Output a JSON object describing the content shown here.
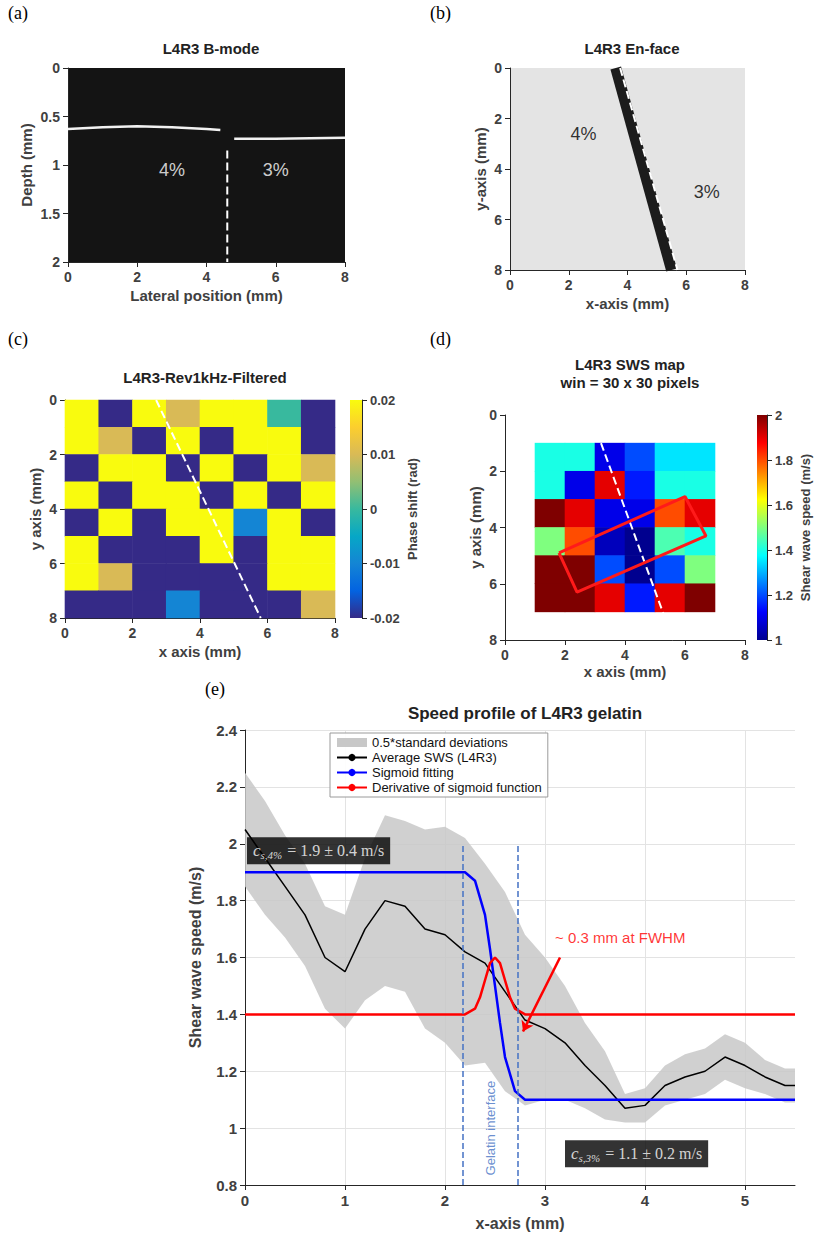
{
  "chart_data": [
    {
      "panel": "(a)",
      "type": "image",
      "title": "L4R3 B-mode",
      "x_label": "Lateral position (mm)",
      "y_label": "Depth (mm)",
      "xlim": [
        0,
        8
      ],
      "xticks": [
        0,
        2,
        4,
        6,
        8
      ],
      "ylim": [
        0,
        2
      ],
      "yticks": [
        0,
        0.5,
        1,
        1.5,
        2
      ],
      "grid": false,
      "surface": {
        "x": [
          0,
          1,
          2,
          3,
          4,
          4.4,
          4.6,
          4.8,
          6,
          8
        ],
        "y": [
          0.63,
          0.61,
          0.6,
          0.61,
          0.63,
          0.64,
          null,
          0.73,
          0.73,
          0.72
        ]
      },
      "interface": [
        [
          4.6,
          0.85
        ],
        [
          4.6,
          2
        ]
      ],
      "annotations": [
        {
          "text": "4%",
          "x": 3,
          "y": 1.05
        },
        {
          "text": "3%",
          "x": 6,
          "y": 1.05
        }
      ]
    },
    {
      "panel": "(b)",
      "type": "image",
      "title": "L4R3 En-face",
      "x_label": "x-axis (mm)",
      "y_label": "y-axis (mm)",
      "xlim": [
        0,
        8
      ],
      "xticks": [
        0,
        2,
        4,
        6,
        8
      ],
      "ylim": [
        0,
        8
      ],
      "yticks": [
        0,
        2,
        4,
        6,
        8
      ],
      "grid": false,
      "band": [
        [
          3.6,
          0
        ],
        [
          5.5,
          8
        ]
      ],
      "interface": [
        [
          3.75,
          0
        ],
        [
          5.7,
          8
        ]
      ],
      "annotations": [
        {
          "text": "4%",
          "x": 2.5,
          "y": 2.6
        },
        {
          "text": "3%",
          "x": 6.7,
          "y": 4.9
        }
      ]
    },
    {
      "panel": "(c)",
      "type": "image",
      "title": "L4R3-Rev1kHz-Filtered",
      "x_label": "x axis (mm)",
      "y_label": "y axis (mm)",
      "xlim": [
        0,
        8
      ],
      "xticks": [
        0,
        2,
        4,
        6,
        8
      ],
      "ylim": [
        0,
        8
      ],
      "yticks": [
        0,
        2,
        4,
        6,
        8
      ],
      "grid": false,
      "cells": {
        "x": [
          0.5,
          1.5,
          2.5,
          3.5,
          4.5,
          5.5,
          6.5,
          7.5
        ],
        "y": [
          0.5,
          1.5,
          2.5,
          3.5,
          4.5,
          5.5,
          6.5,
          7.5
        ],
        "values": [
          [
            0.02,
            -0.02,
            0.02,
            0.01,
            0.02,
            0.02,
            0,
            -0.02
          ],
          [
            0.02,
            0.01,
            -0.02,
            0.02,
            -0.02,
            0.02,
            0.02,
            -0.02
          ],
          [
            -0.02,
            0.02,
            0.02,
            -0.02,
            0.02,
            -0.02,
            0.02,
            0.01
          ],
          [
            0.02,
            -0.02,
            0.02,
            0.02,
            -0.02,
            0.02,
            -0.02,
            0.02
          ],
          [
            -0.02,
            0.02,
            -0.02,
            0.02,
            0.02,
            -0.01,
            0.02,
            -0.02
          ],
          [
            0.02,
            -0.02,
            -0.02,
            -0.02,
            0.02,
            -0.02,
            0.02,
            0.02
          ],
          [
            0.02,
            0.01,
            -0.02,
            -0.02,
            -0.02,
            -0.02,
            0.02,
            0.02
          ],
          [
            -0.02,
            -0.02,
            -0.02,
            -0.01,
            -0.02,
            -0.02,
            -0.02,
            0.01
          ]
        ]
      },
      "colorbar": {
        "label": "Phase shift (rad)",
        "range": [
          -0.02,
          0.02
        ],
        "ticks": [
          -0.02,
          -0.01,
          0,
          0.01,
          0.02
        ]
      },
      "interface": [
        [
          2.7,
          0
        ],
        [
          5.8,
          8
        ]
      ]
    },
    {
      "panel": "(d)",
      "type": "image",
      "title": "L4R3 SWS map",
      "subtitle": "win = 30 x 30 pixels",
      "x_label": "x axis (mm)",
      "y_label": "y axis (mm)",
      "xlim": [
        0,
        8
      ],
      "xticks": [
        0,
        2,
        4,
        6,
        8
      ],
      "ylim": [
        0,
        8
      ],
      "yticks": [
        0,
        2,
        4,
        6,
        8
      ],
      "grid": false,
      "cells": {
        "x": [
          1.5,
          2.5,
          3.5,
          4.5,
          5.5,
          6.5
        ],
        "y": [
          1.5,
          2.5,
          3.5,
          4.5,
          5.5,
          6.5
        ],
        "values": [
          [
            1.4,
            1.4,
            1.1,
            1.2,
            1.35,
            1.35
          ],
          [
            1.4,
            1.1,
            1.9,
            1.15,
            1.4,
            1.4
          ],
          [
            2,
            1.9,
            1.1,
            1.1,
            1.8,
            1.9
          ],
          [
            1.5,
            1.8,
            1.05,
            1,
            1.45,
            1.4
          ],
          [
            2,
            2,
            1.2,
            1,
            1.2,
            1.5
          ],
          [
            2,
            2,
            1.9,
            1.15,
            1.9,
            2
          ]
        ]
      },
      "colorbar": {
        "label": "Shear wave speed (m/s)",
        "range": [
          1,
          2
        ],
        "ticks": [
          1,
          1.2,
          1.4,
          1.6,
          1.8,
          2
        ]
      },
      "interface": [
        [
          3.2,
          1
        ],
        [
          5.6,
          8
        ]
      ],
      "box": [
        [
          1.8,
          4.9
        ],
        [
          6.0,
          2.9
        ],
        [
          6.7,
          4.3
        ],
        [
          2.4,
          6.3
        ]
      ]
    },
    {
      "panel": "(e)",
      "type": "line",
      "title": "Speed profile of L4R3 gelatin",
      "x_label": "x-axis (mm)",
      "y_label": "Shear wave speed (m/s)",
      "xlim": [
        0,
        5.5
      ],
      "xticks": [
        0,
        1,
        2,
        3,
        4,
        5
      ],
      "ylim": [
        0.8,
        2.4
      ],
      "yticks": [
        0.8,
        1,
        1.2,
        1.4,
        1.6,
        1.8,
        2,
        2.2,
        2.4
      ],
      "grid": true,
      "legend": "top",
      "series": [
        {
          "name": "0.5*standard deviations",
          "type": "band",
          "color": "#c8c8c8",
          "x": [
            0,
            0.2,
            0.4,
            0.6,
            0.8,
            1.0,
            1.2,
            1.4,
            1.6,
            1.8,
            2.0,
            2.2,
            2.4,
            2.6,
            2.8,
            3.0,
            3.2,
            3.4,
            3.6,
            3.8,
            4.0,
            4.2,
            4.4,
            4.6,
            4.8,
            5.0,
            5.2,
            5.4,
            5.5
          ],
          "upper": [
            2.25,
            2.15,
            2.03,
            1.93,
            1.78,
            1.75,
            1.95,
            2.1,
            2.08,
            2.05,
            2.06,
            2.02,
            1.93,
            1.83,
            1.68,
            1.6,
            1.5,
            1.37,
            1.27,
            1.12,
            1.14,
            1.22,
            1.26,
            1.28,
            1.33,
            1.3,
            1.24,
            1.21,
            1.21
          ],
          "lower": [
            1.85,
            1.75,
            1.67,
            1.57,
            1.42,
            1.35,
            1.45,
            1.5,
            1.48,
            1.35,
            1.3,
            1.22,
            1.23,
            1.13,
            1.08,
            1.1,
            1.1,
            1.07,
            1.03,
            1.02,
            1.02,
            1.08,
            1.1,
            1.12,
            1.17,
            1.14,
            1.12,
            1.09,
            1.09
          ]
        },
        {
          "name": "Average SWS (L4R3)",
          "type": "line",
          "color": "#000000",
          "x": [
            0,
            0.2,
            0.4,
            0.6,
            0.8,
            1.0,
            1.2,
            1.4,
            1.6,
            1.8,
            2.0,
            2.2,
            2.4,
            2.6,
            2.8,
            3.0,
            3.2,
            3.4,
            3.6,
            3.8,
            4.0,
            4.2,
            4.4,
            4.6,
            4.8,
            5.0,
            5.2,
            5.4,
            5.5
          ],
          "values": [
            2.05,
            1.95,
            1.85,
            1.75,
            1.6,
            1.55,
            1.7,
            1.8,
            1.78,
            1.7,
            1.68,
            1.62,
            1.58,
            1.48,
            1.38,
            1.35,
            1.3,
            1.22,
            1.15,
            1.07,
            1.08,
            1.15,
            1.18,
            1.2,
            1.25,
            1.22,
            1.18,
            1.15,
            1.15
          ]
        },
        {
          "name": "Sigmoid fitting",
          "type": "line",
          "color": "#0000ff",
          "x": [
            0,
            2.2,
            2.3,
            2.4,
            2.45,
            2.5,
            2.55,
            2.6,
            2.7,
            2.8,
            5.5
          ],
          "values": [
            1.9,
            1.9,
            1.87,
            1.75,
            1.63,
            1.5,
            1.37,
            1.25,
            1.13,
            1.1,
            1.1
          ]
        },
        {
          "name": "Derivative of sigmoid function",
          "type": "line",
          "color": "#ff0000",
          "x": [
            0,
            2.2,
            2.3,
            2.35,
            2.4,
            2.45,
            2.5,
            2.55,
            2.6,
            2.65,
            2.7,
            2.8,
            5.5
          ],
          "values": [
            1.4,
            1.4,
            1.42,
            1.46,
            1.52,
            1.58,
            1.6,
            1.58,
            1.52,
            1.46,
            1.42,
            1.4,
            1.4
          ]
        }
      ],
      "annotations": {
        "boxes": [
          {
            "symbol": "c",
            "subscript": "s,4%",
            "text": "= 1.9 ± 0.4 m/s",
            "x": 0.02,
            "y": 1.975
          },
          {
            "symbol": "c",
            "subscript": "s,3%",
            "text": "= 1.1 ± 0.2 m/s",
            "x": 3.2,
            "y": 0.91
          }
        ],
        "texts": [
          {
            "text": "~ 0.3 mm at FWHM",
            "x": 3.1,
            "y": 1.67,
            "color": "#ff0000"
          }
        ],
        "vertical_text": {
          "text": "Gelatin interface",
          "x": 2.45,
          "y": 1.0,
          "color": "#4472c4"
        },
        "arrow": {
          "from": [
            3.15,
            1.6
          ],
          "to": [
            2.78,
            1.34
          ],
          "color": "#ff0000"
        },
        "interface_lines": {
          "x": [
            2.18,
            2.73
          ],
          "y": [
            0.8,
            2.0
          ],
          "color": "#4472c4"
        }
      }
    }
  ]
}
